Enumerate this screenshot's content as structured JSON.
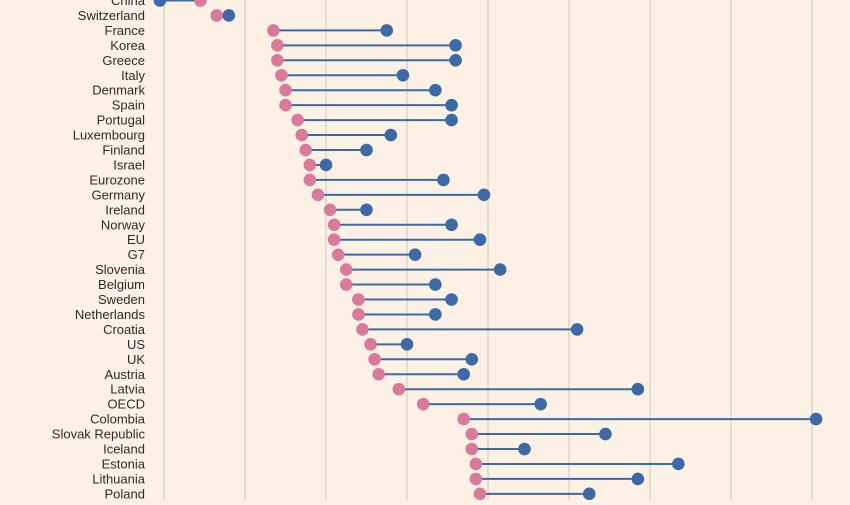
{
  "chart_data": {
    "type": "dumbbell",
    "title": "",
    "xlabel": "",
    "ylabel": "",
    "xlim": [
      0,
      16
    ],
    "grid": true,
    "colors": {
      "start": "#d97a9c",
      "end": "#3d6aa6",
      "line": "#3d6aa6",
      "grid": "#cfc8c0",
      "background": "#fdf1e5",
      "label": "#2b2b2b"
    },
    "series": [
      {
        "name": "start",
        "color": "#d97a9c"
      },
      {
        "name": "end",
        "color": "#3d6aa6"
      }
    ],
    "categories": [
      "China",
      "Switzerland",
      "France",
      "Korea",
      "Greece",
      "Italy",
      "Denmark",
      "Spain",
      "Portugal",
      "Luxembourg",
      "Finland",
      "Israel",
      "Eurozone",
      "Germany",
      "Ireland",
      "Norway",
      "EU",
      "G7",
      "Slovenia",
      "Belgium",
      "Sweden",
      "Netherlands",
      "Croatia",
      "US",
      "UK",
      "Austria",
      "Latvia",
      "OECD",
      "Colombia",
      "Slovak Republic",
      "Iceland",
      "Estonia",
      "Lithuania",
      "Poland"
    ],
    "rows": [
      {
        "label": "China",
        "start": 0.9,
        "end": -0.1
      },
      {
        "label": "Switzerland",
        "start": 1.3,
        "end": 1.6
      },
      {
        "label": "France",
        "start": 2.7,
        "end": 5.5
      },
      {
        "label": "Korea",
        "start": 2.8,
        "end": 7.2
      },
      {
        "label": "Greece",
        "start": 2.8,
        "end": 7.2
      },
      {
        "label": "Italy",
        "start": 2.9,
        "end": 5.9
      },
      {
        "label": "Denmark",
        "start": 3.0,
        "end": 6.7
      },
      {
        "label": "Spain",
        "start": 3.0,
        "end": 7.1
      },
      {
        "label": "Portugal",
        "start": 3.3,
        "end": 7.1
      },
      {
        "label": "Luxembourg",
        "start": 3.4,
        "end": 5.6
      },
      {
        "label": "Finland",
        "start": 3.5,
        "end": 5.0
      },
      {
        "label": "Israel",
        "start": 3.6,
        "end": 4.0
      },
      {
        "label": "Eurozone",
        "start": 3.6,
        "end": 6.9
      },
      {
        "label": "Germany",
        "start": 3.8,
        "end": 7.9
      },
      {
        "label": "Ireland",
        "start": 4.1,
        "end": 5.0
      },
      {
        "label": "Norway",
        "start": 4.2,
        "end": 7.1
      },
      {
        "label": "EU",
        "start": 4.2,
        "end": 7.8
      },
      {
        "label": "G7",
        "start": 4.3,
        "end": 6.2
      },
      {
        "label": "Slovenia",
        "start": 4.5,
        "end": 8.3
      },
      {
        "label": "Belgium",
        "start": 4.5,
        "end": 6.7
      },
      {
        "label": "Sweden",
        "start": 4.8,
        "end": 7.1
      },
      {
        "label": "Netherlands",
        "start": 4.8,
        "end": 6.7
      },
      {
        "label": "Croatia",
        "start": 4.9,
        "end": 10.2
      },
      {
        "label": "US",
        "start": 5.1,
        "end": 6.0
      },
      {
        "label": "UK",
        "start": 5.2,
        "end": 7.6
      },
      {
        "label": "Austria",
        "start": 5.3,
        "end": 7.4
      },
      {
        "label": "Latvia",
        "start": 5.8,
        "end": 11.7
      },
      {
        "label": "OECD",
        "start": 6.4,
        "end": 9.3
      },
      {
        "label": "Colombia",
        "start": 7.4,
        "end": 16.1
      },
      {
        "label": "Slovak Republic",
        "start": 7.6,
        "end": 10.9
      },
      {
        "label": "Iceland",
        "start": 7.6,
        "end": 8.9
      },
      {
        "label": "Estonia",
        "start": 7.7,
        "end": 12.7
      },
      {
        "label": "Lithuania",
        "start": 7.7,
        "end": 11.7
      },
      {
        "label": "Poland",
        "start": 7.8,
        "end": 10.5
      }
    ]
  }
}
